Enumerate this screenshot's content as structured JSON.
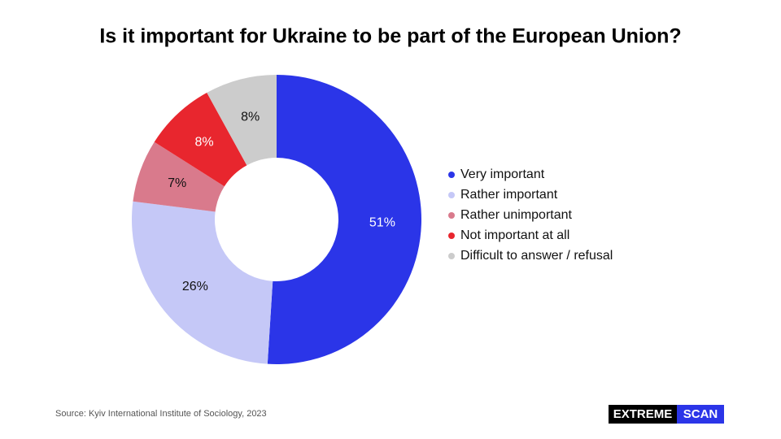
{
  "chart_data": {
    "type": "donut",
    "title": "Is it important for Ukraine to be part of the European Union?",
    "categories": [
      "Very important",
      "Rather important",
      "Rather unimportant",
      "Not important at all",
      "Difficult to answer / refusal"
    ],
    "values": [
      51,
      26,
      7,
      8,
      8
    ],
    "value_labels": [
      "51%",
      "26%",
      "7%",
      "8%",
      "8%"
    ],
    "colors": [
      "#2b35e8",
      "#c5c8f7",
      "#d97a8c",
      "#e8262e",
      "#cccccc"
    ],
    "label_colors": [
      "#ffffff",
      "#111111",
      "#111111",
      "#ffffff",
      "#111111"
    ],
    "legend": "right"
  },
  "source": "Source: Kyiv International Institute of Sociology, 2023",
  "logo": {
    "left": "EXTREME",
    "right": "SCAN"
  }
}
